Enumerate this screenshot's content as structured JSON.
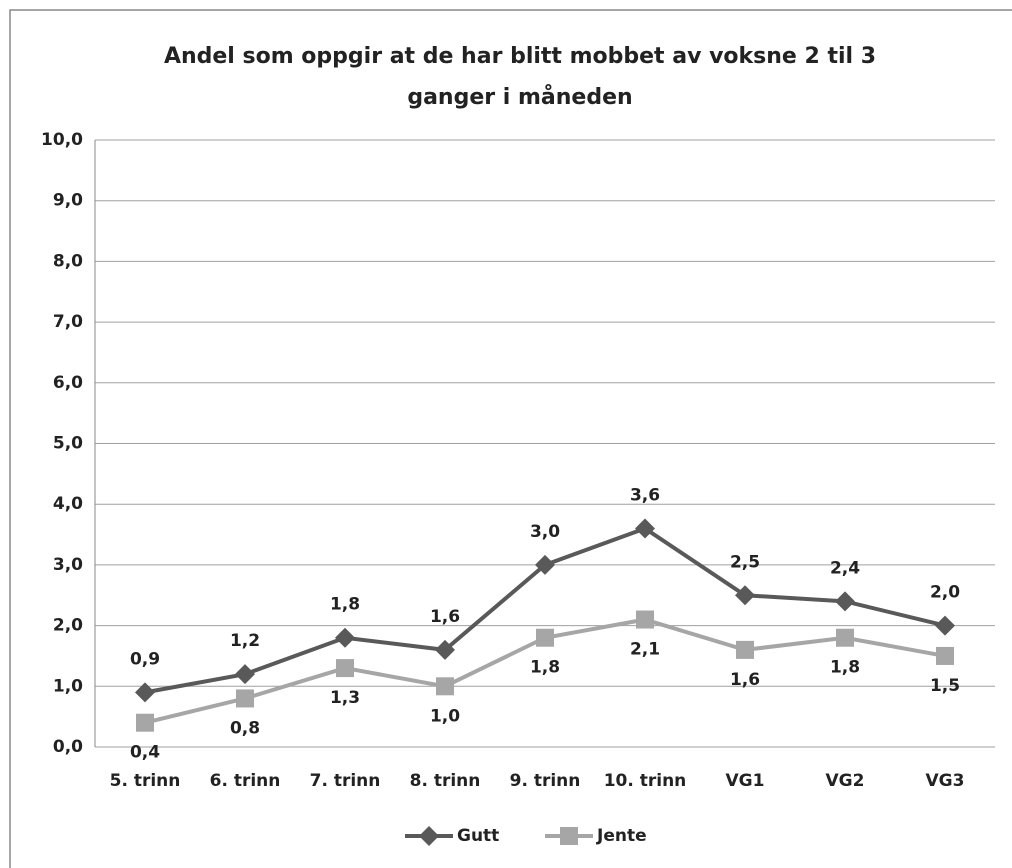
{
  "chart_data": {
    "type": "line",
    "title": "Andel som oppgir at de har blitt mobbet av voksne 2 til 3 ganger i måneden",
    "categories": [
      "5. trinn",
      "6. trinn",
      "7. trinn",
      "8. trinn",
      "9. trinn",
      "10. trinn",
      "VG1",
      "VG2",
      "VG3"
    ],
    "series": [
      {
        "name": "Gutt",
        "color": "#595959",
        "marker": "diamond",
        "values": [
          0.9,
          1.2,
          1.8,
          1.6,
          3.0,
          3.6,
          2.5,
          2.4,
          2.0
        ],
        "value_labels": [
          "0,9",
          "1,2",
          "1,8",
          "1,6",
          "3,0",
          "3,6",
          "2,5",
          "2,4",
          "2,0"
        ]
      },
      {
        "name": "Jente",
        "color": "#a6a6a6",
        "marker": "square",
        "values": [
          0.4,
          0.8,
          1.3,
          1.0,
          1.8,
          2.1,
          1.6,
          1.8,
          1.5
        ],
        "value_labels": [
          "0,4",
          "0,8",
          "1,3",
          "1,0",
          "1,8",
          "2,1",
          "1,6",
          "1,8",
          "1,5"
        ]
      }
    ],
    "ylim": [
      0,
      10
    ],
    "yticks": [
      {
        "value": 0,
        "label": "0,0"
      },
      {
        "value": 1,
        "label": "1,0"
      },
      {
        "value": 2,
        "label": "2,0"
      },
      {
        "value": 3,
        "label": "3,0"
      },
      {
        "value": 4,
        "label": "4,0"
      },
      {
        "value": 5,
        "label": "5,0"
      },
      {
        "value": 6,
        "label": "6,0"
      },
      {
        "value": 7,
        "label": "7,0"
      },
      {
        "value": 8,
        "label": "8,0"
      },
      {
        "value": 9,
        "label": "9,0"
      },
      {
        "value": 10,
        "label": "10,0"
      }
    ],
    "grid": true,
    "legend": "bottom"
  }
}
